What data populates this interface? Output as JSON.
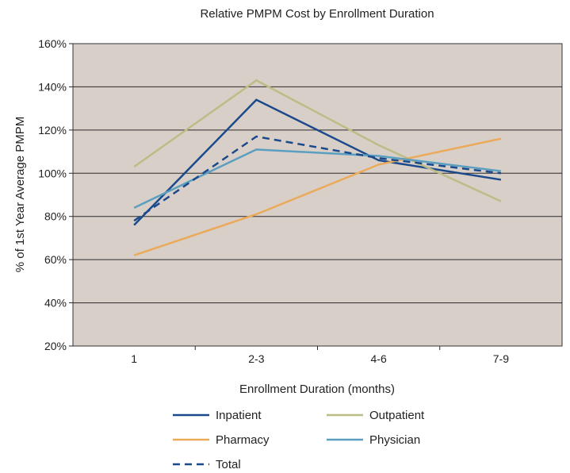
{
  "chart_data": {
    "type": "line",
    "title": "Relative PMPM Cost by Enrollment Duration",
    "xlabel": "Enrollment Duration (months)",
    "ylabel": "% of 1st Year Average PMPM",
    "categories": [
      "1",
      "2-3",
      "4-6",
      "7-9"
    ],
    "ylim": [
      20,
      160
    ],
    "yticks": [
      20,
      40,
      60,
      80,
      100,
      120,
      140,
      160
    ],
    "ytick_labels": [
      "20%",
      "40%",
      "60%",
      "80%",
      "100%",
      "120%",
      "140%",
      "160%"
    ],
    "grid": "horizontal",
    "plot_background": "#d9cfc9",
    "legend_position": "bottom",
    "series": [
      {
        "name": "Inpatient",
        "color": "#1b4a8c",
        "dash": "solid",
        "values": [
          76,
          134,
          106,
          97
        ]
      },
      {
        "name": "Outpatient",
        "color": "#bcbc86",
        "dash": "solid",
        "values": [
          103,
          143,
          113,
          87
        ]
      },
      {
        "name": "Pharmacy",
        "color": "#eaaa5a",
        "dash": "solid",
        "values": [
          62,
          81,
          104,
          116
        ]
      },
      {
        "name": "Physician",
        "color": "#5b9fc0",
        "dash": "solid",
        "values": [
          84,
          111,
          108,
          101
        ]
      },
      {
        "name": "Total",
        "color": "#1b4a8c",
        "dash": "dashed",
        "values": [
          78,
          117,
          107,
          100
        ]
      }
    ]
  }
}
